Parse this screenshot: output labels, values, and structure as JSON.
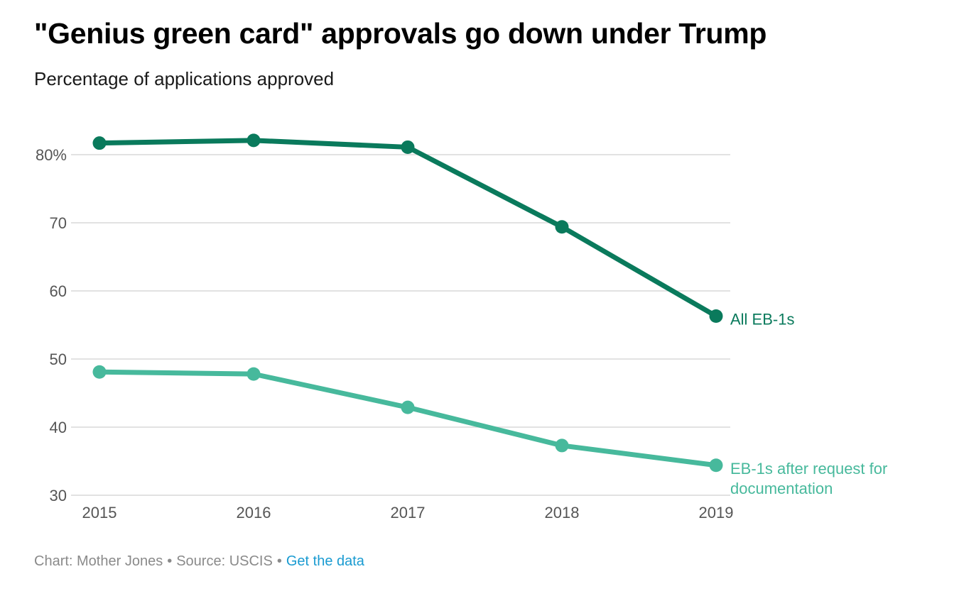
{
  "colors": {
    "series_dark": "#0a7a5c",
    "series_light": "#47b99c",
    "grid": "#d9d9d9",
    "axis_text": "#555555",
    "footer_text": "#8a8a8a",
    "link": "#1a9bd1"
  },
  "footer": {
    "chart_credit": "Chart: Mother Jones",
    "source": "Source: USCIS",
    "separator": "•",
    "data_link_label": "Get the data"
  },
  "chart_data": {
    "type": "line",
    "title": "\"Genius green card\" approvals go down under Trump",
    "subtitle": "Percentage of applications approved",
    "xlabel": "",
    "ylabel": "",
    "x": [
      "2015",
      "2016",
      "2017",
      "2018",
      "2019"
    ],
    "ylim": [
      30,
      85
    ],
    "yticks": [
      30,
      40,
      50,
      60,
      70,
      80
    ],
    "ytick_labels": [
      "30",
      "40",
      "50",
      "60",
      "70",
      "80%"
    ],
    "grid": true,
    "legend": "direct labels at line ends",
    "series": [
      {
        "name": "All EB-1s",
        "values": [
          81.7,
          82.1,
          81.1,
          69.4,
          56.3
        ],
        "color": "#0a7a5c"
      },
      {
        "name": "EB-1s after request for documentation",
        "name_lines": [
          "EB-1s after request for",
          "documentation"
        ],
        "values": [
          48.1,
          47.8,
          42.9,
          37.3,
          34.4
        ],
        "color": "#47b99c"
      }
    ]
  }
}
